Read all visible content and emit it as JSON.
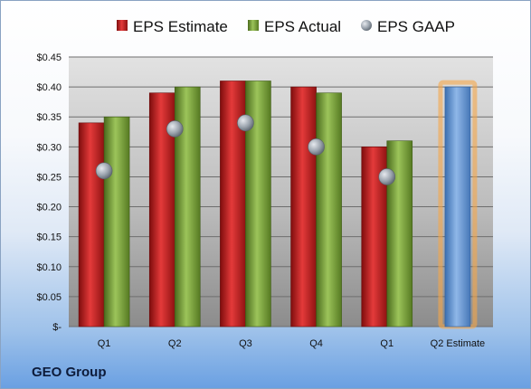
{
  "company": "GEO Group",
  "chart_data": {
    "type": "bar",
    "categories": [
      "Q1",
      "Q2",
      "Q3",
      "Q4",
      "Q1",
      "Q2 Estimate"
    ],
    "series": [
      {
        "name": "EPS Estimate",
        "values": [
          0.34,
          0.39,
          0.41,
          0.4,
          0.3,
          null
        ],
        "color": "#cc1f1f"
      },
      {
        "name": "EPS Actual",
        "values": [
          0.35,
          0.4,
          0.41,
          0.39,
          0.31,
          null
        ],
        "color": "#7fa63a"
      },
      {
        "name": "EPS GAAP",
        "type": "scatter",
        "values": [
          0.26,
          0.33,
          0.34,
          0.3,
          0.25,
          null
        ],
        "color": "#9aa3ad"
      },
      {
        "name": "Q2 Estimate",
        "values": [
          null,
          null,
          null,
          null,
          null,
          0.4
        ],
        "color": "#6f9fd8",
        "highlight": "#f5a64a"
      }
    ],
    "y_ticks": [
      "$-",
      "$0.05",
      "$0.10",
      "$0.15",
      "$0.20",
      "$0.25",
      "$0.30",
      "$0.35",
      "$0.40",
      "$0.45"
    ],
    "ylim": [
      0,
      0.45
    ],
    "grid": true,
    "legend": "top"
  }
}
